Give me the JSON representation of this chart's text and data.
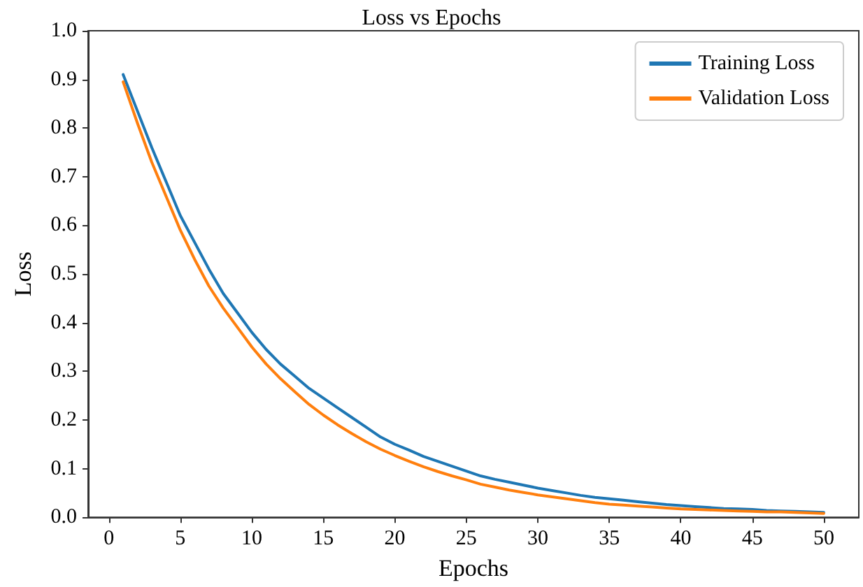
{
  "chart_data": {
    "type": "line",
    "title": "Loss vs Epochs",
    "xlabel": "Epochs",
    "ylabel": "Loss",
    "x": [
      1,
      2,
      3,
      4,
      5,
      6,
      7,
      8,
      9,
      10,
      11,
      12,
      13,
      14,
      15,
      16,
      17,
      18,
      19,
      20,
      21,
      22,
      23,
      24,
      25,
      26,
      27,
      28,
      29,
      30,
      31,
      32,
      33,
      34,
      35,
      36,
      37,
      38,
      39,
      40,
      41,
      42,
      43,
      44,
      45,
      46,
      47,
      48,
      49,
      50
    ],
    "series": [
      {
        "name": "Training Loss",
        "color": "#1f77b4",
        "values": [
          0.91,
          0.835,
          0.76,
          0.69,
          0.62,
          0.565,
          0.51,
          0.46,
          0.42,
          0.38,
          0.345,
          0.315,
          0.29,
          0.265,
          0.245,
          0.225,
          0.205,
          0.185,
          0.165,
          0.15,
          0.138,
          0.125,
          0.115,
          0.105,
          0.095,
          0.085,
          0.078,
          0.072,
          0.066,
          0.06,
          0.055,
          0.05,
          0.045,
          0.041,
          0.038,
          0.035,
          0.032,
          0.029,
          0.026,
          0.024,
          0.022,
          0.02,
          0.018,
          0.017,
          0.016,
          0.014,
          0.013,
          0.012,
          0.011,
          0.01
        ]
      },
      {
        "name": "Validation Loss",
        "color": "#ff7f0e",
        "values": [
          0.895,
          0.81,
          0.73,
          0.66,
          0.59,
          0.53,
          0.475,
          0.43,
          0.39,
          0.35,
          0.315,
          0.285,
          0.258,
          0.232,
          0.21,
          0.19,
          0.172,
          0.155,
          0.14,
          0.127,
          0.115,
          0.104,
          0.094,
          0.085,
          0.077,
          0.068,
          0.062,
          0.056,
          0.051,
          0.046,
          0.042,
          0.038,
          0.034,
          0.03,
          0.027,
          0.025,
          0.023,
          0.021,
          0.019,
          0.017,
          0.016,
          0.015,
          0.014,
          0.013,
          0.012,
          0.011,
          0.011,
          0.01,
          0.009,
          0.008
        ]
      }
    ],
    "xlim": [
      -1.45,
      52.45
    ],
    "xticks": [
      0,
      5,
      10,
      15,
      20,
      25,
      30,
      35,
      40,
      45,
      50
    ],
    "ylim": [
      0,
      1
    ],
    "yticks": [
      {
        "value": 0,
        "label": "0.0"
      },
      0.1,
      0.2,
      0.3,
      0.4,
      0.5,
      0.6,
      0.7,
      0.8,
      0.9,
      {
        "value": 1,
        "label": "1.0"
      }
    ],
    "grid": false,
    "legend": "top right",
    "marker": "none",
    "line_style": "solid"
  }
}
